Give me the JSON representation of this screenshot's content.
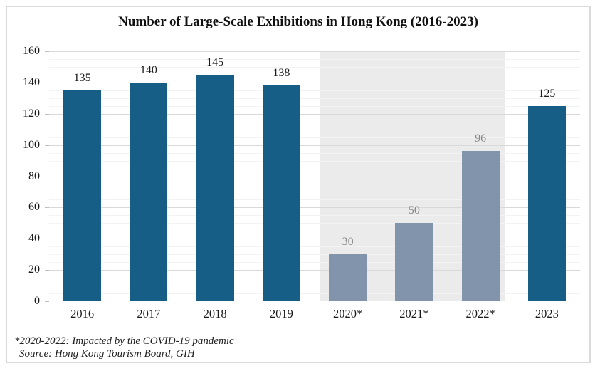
{
  "figure": {
    "title": "Number of Large-Scale Exhibitions in Hong Kong (2016-2023)"
  },
  "footnotes": [
    "*2020-2022: Impacted by the COVID-19 pandemic",
    "Source: Hong Kong Tourism Board, GIH"
  ],
  "chart_data": {
    "type": "bar",
    "title": "Number of Large-Scale Exhibitions in Hong Kong (2016-2023)",
    "categories": [
      "2016",
      "2017",
      "2018",
      "2019",
      "2020*",
      "2021*",
      "2022*",
      "2023"
    ],
    "values": [
      135,
      140,
      145,
      138,
      30,
      50,
      96,
      125
    ],
    "xlabel": "",
    "ylabel": "",
    "ylim": [
      0,
      160
    ],
    "y_tick_step": 20,
    "y_minor_step": 5,
    "y_tick_labels": [
      "0",
      "20",
      "40",
      "60",
      "80",
      "100",
      "120",
      "140",
      "160"
    ],
    "grid": "horizontal major and minor gridlines",
    "legend": "none",
    "data_labels_shown": true,
    "series_styles": {
      "normal": {
        "bar_color": "#165E85",
        "label_color": "#1a1a1a",
        "applies_to": [
          "2016",
          "2017",
          "2018",
          "2019",
          "2023"
        ]
      },
      "covid": {
        "bar_color": "#8294AB",
        "label_color": "#878787",
        "applies_to": [
          "2020*",
          "2021*",
          "2022*"
        ]
      }
    },
    "highlight_band": {
      "from_category": "2020*",
      "to_category": "2022*",
      "color": "#EBEBEB",
      "meaning": "COVID-19 impacted years"
    },
    "colors": {
      "major_grid": "#D9D9D9",
      "minor_grid": "#F3F3F3",
      "axis_line": "#C6C6C6",
      "tick": "#BFBFBF",
      "figure_border": "#DBDBDB"
    }
  }
}
